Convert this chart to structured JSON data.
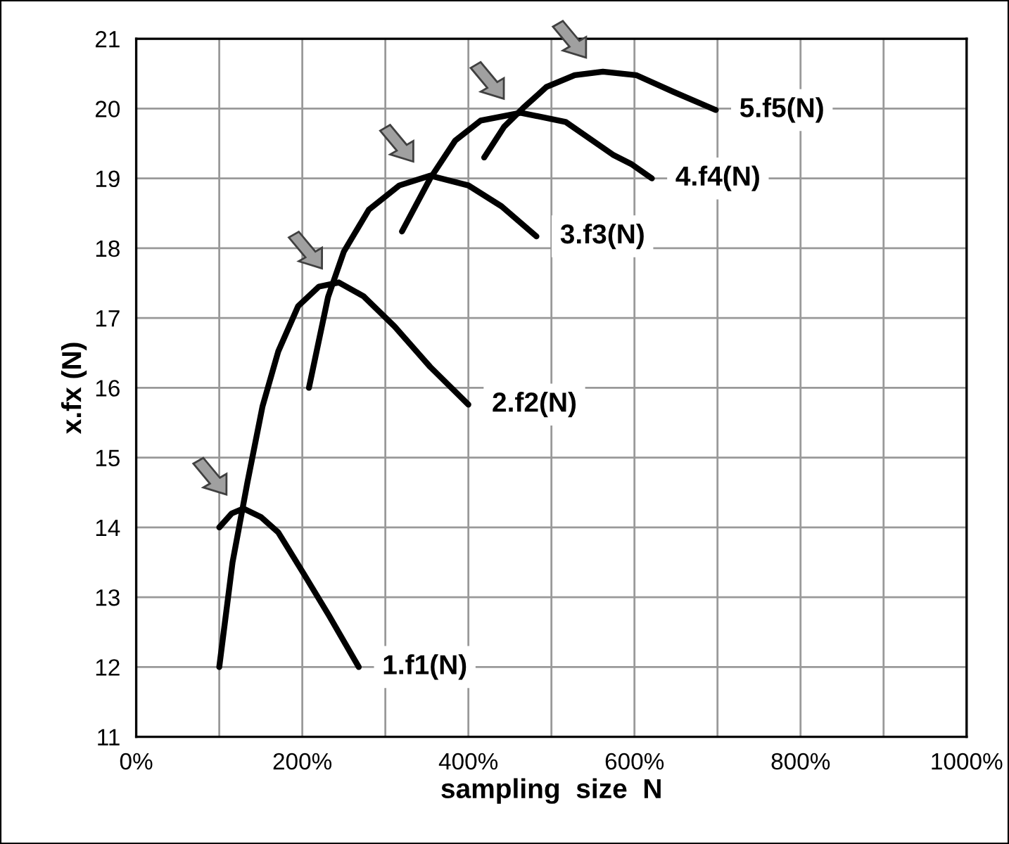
{
  "chart_data": {
    "type": "line",
    "xlabel": "sampling  size  N",
    "ylabel": "x.fx (N)",
    "xlim": [
      0,
      1000
    ],
    "ylim": [
      11,
      21
    ],
    "xticks": [
      {
        "value": 0,
        "label": "0%"
      },
      {
        "value": 100,
        "label": null
      },
      {
        "value": 200,
        "label": "200%"
      },
      {
        "value": 300,
        "label": null
      },
      {
        "value": 400,
        "label": "400%"
      },
      {
        "value": 500,
        "label": null
      },
      {
        "value": 600,
        "label": "600%"
      },
      {
        "value": 700,
        "label": null
      },
      {
        "value": 800,
        "label": "800%"
      },
      {
        "value": 900,
        "label": null
      },
      {
        "value": 1000,
        "label": "1000%"
      }
    ],
    "yticks": [
      11,
      12,
      13,
      14,
      15,
      16,
      17,
      18,
      19,
      20,
      21
    ],
    "grid": true,
    "legend": false,
    "marker": "none",
    "line_style": "solid",
    "series": [
      {
        "name": "1.f1(N)",
        "color": "#000000",
        "x": [
          100,
          115,
          129,
          150,
          171,
          201,
          232,
          268
        ],
        "values": [
          14.0,
          14.2,
          14.27,
          14.15,
          13.93,
          13.35,
          12.74,
          12.0
        ]
      },
      {
        "name": "2.f2(N)",
        "color": "#000000",
        "x": [
          100,
          116,
          134,
          152,
          171,
          195,
          220,
          244,
          274,
          311,
          354,
          400
        ],
        "values": [
          12.0,
          13.5,
          14.65,
          15.73,
          16.52,
          17.17,
          17.45,
          17.51,
          17.31,
          16.88,
          16.3,
          15.76
        ]
      },
      {
        "name": "3.f3(N)",
        "color": "#000000",
        "x": [
          208,
          231,
          250,
          280,
          317,
          354,
          400,
          440,
          482
        ],
        "values": [
          16.0,
          17.3,
          17.95,
          18.55,
          18.9,
          19.04,
          18.9,
          18.6,
          18.17
        ]
      },
      {
        "name": "4.f4(N)",
        "color": "#000000",
        "x": [
          320,
          354,
          384,
          415,
          463,
          517,
          574,
          597,
          621
        ],
        "values": [
          18.24,
          19.0,
          19.54,
          19.83,
          19.94,
          19.81,
          19.34,
          19.2,
          19.0
        ]
      },
      {
        "name": "5.f5(N)",
        "color": "#000000",
        "x": [
          419,
          443,
          466,
          494,
          528,
          562,
          602,
          647,
          698
        ],
        "values": [
          19.3,
          19.74,
          20.01,
          20.31,
          20.48,
          20.53,
          20.48,
          20.24,
          19.98
        ]
      }
    ]
  }
}
